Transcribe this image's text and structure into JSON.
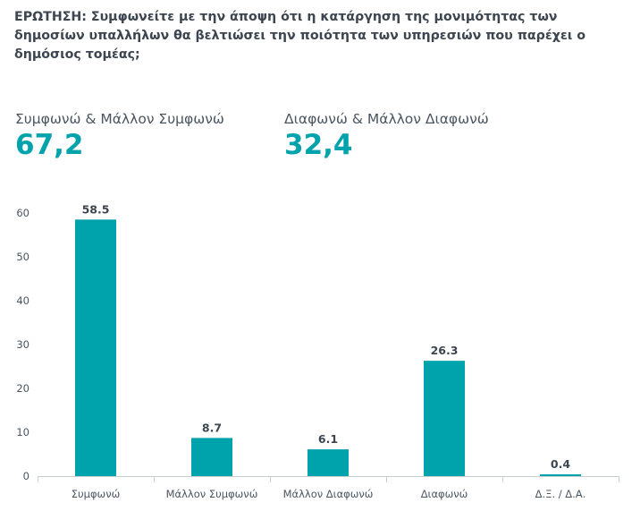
{
  "question": {
    "prefix": "ΕΡΩΤΗΣΗ:",
    "text": "Συμφωνείτε με την άποψη ότι η κατάργηση της μονιμότητας των δημοσίων υπαλλήλων θα βελτιώσει την ποιότητα των υπηρεσιών που παρέχει ο δημόσιος τομέας;"
  },
  "summary": {
    "agree_label": "Συμφωνώ & Μάλλον Συμφωνώ",
    "agree_value": "67,2",
    "disagree_label": "Διαφωνώ & Μάλλον Διαφωνώ",
    "disagree_value": "32,4"
  },
  "colors": {
    "accent": "#00a2ac",
    "bar": "#00a2ac",
    "text": "#3d4650",
    "axis": "#c8cdd1"
  },
  "chart_data": {
    "type": "bar",
    "categories": [
      "Συμφωνώ",
      "Μάλλον Συμφωνώ",
      "Μάλλον Διαφωνώ",
      "Διαφωνώ",
      "Δ.Ξ. / Δ.Α."
    ],
    "values": [
      58.5,
      8.7,
      6.1,
      26.3,
      0.4
    ],
    "data_labels": [
      "58.5",
      "8.7",
      "6.1",
      "26.3",
      "0.4"
    ],
    "ylim": [
      0,
      60
    ],
    "yticks": [
      0,
      10,
      20,
      30,
      40,
      50,
      60
    ],
    "grid": false,
    "title": "",
    "xlabel": "",
    "ylabel": ""
  }
}
